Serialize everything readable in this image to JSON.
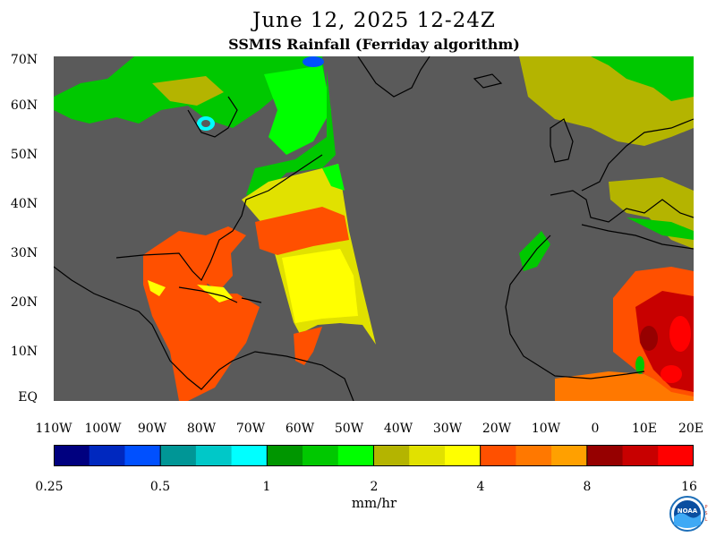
{
  "title": "June 12, 2025 12-24Z",
  "subtitle": "SSMIS Rainfall (Ferriday algorithm)",
  "map": {
    "lat_labels": [
      "70N",
      "60N",
      "50N",
      "40N",
      "30N",
      "20N",
      "10N",
      "EQ"
    ],
    "lon_labels": [
      "110W",
      "100W",
      "90W",
      "80W",
      "70W",
      "60W",
      "50W",
      "40W",
      "30W",
      "20W",
      "10W",
      "0",
      "10E",
      "20E"
    ],
    "land_color": "#5a5a5a",
    "no_data_color": "#5a5a5a"
  },
  "colorbar": {
    "colors": [
      "#00007f",
      "#0028bf",
      "#0050ff",
      "#009696",
      "#00c8c8",
      "#00ffff",
      "#009600",
      "#00c800",
      "#00ff00",
      "#b4b400",
      "#e1e100",
      "#ffff00",
      "#ff5000",
      "#ff7800",
      "#ffa000",
      "#960000",
      "#c80000",
      "#ff0000"
    ],
    "tick_labels": [
      "0.25",
      "0.5",
      "1",
      "2",
      "4",
      "8",
      "16"
    ],
    "units": "mm/hr"
  },
  "logo": {
    "text": "NOAA",
    "side_text": "PSL"
  }
}
